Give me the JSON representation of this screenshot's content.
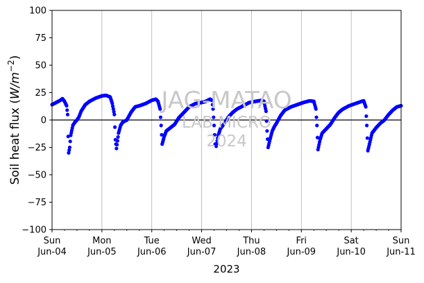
{
  "chart_data": {
    "type": "scatter",
    "title": "",
    "xlabel": "2023",
    "ylabel": "Soil heat flux (W/m⁻²)",
    "ylabel_parts": {
      "prefix": "Soil heat flux (",
      "unit": "W/m",
      "exp": "−2",
      "suffix": ")"
    },
    "xlim": [
      "2023-06-04",
      "2023-06-11"
    ],
    "ylim": [
      -100,
      100
    ],
    "yticks": [
      -100,
      -75,
      -50,
      -25,
      0,
      25,
      50,
      75,
      100
    ],
    "ytick_labels": [
      "−100",
      "−75",
      "−50",
      "−25",
      "0",
      "25",
      "50",
      "75",
      "100"
    ],
    "xticks": [
      {
        "date": "2023-06-04",
        "day": "Sun",
        "date_label": "Jun-04"
      },
      {
        "date": "2023-06-05",
        "day": "Mon",
        "date_label": "Jun-05"
      },
      {
        "date": "2023-06-06",
        "day": "Tue",
        "date_label": "Jun-06"
      },
      {
        "date": "2023-06-07",
        "day": "Wed",
        "date_label": "Jun-07"
      },
      {
        "date": "2023-06-08",
        "day": "Thu",
        "date_label": "Jun-08"
      },
      {
        "date": "2023-06-09",
        "day": "Fri",
        "date_label": "Jun-09"
      },
      {
        "date": "2023-06-10",
        "day": "Sat",
        "date_label": "Jun-10"
      },
      {
        "date": "2023-06-11",
        "day": "Sun",
        "date_label": "Jun-11"
      }
    ],
    "grid": "vertical",
    "zero_line": true,
    "marker_color": "#0000ff",
    "watermark": [
      "JAG-MATAO",
      "LAB MICRO",
      "2024"
    ],
    "series": [
      {
        "points": [
          [
            "2023-06-04 00:00",
            14
          ],
          [
            "2023-06-04 02:00",
            16
          ],
          [
            "2023-06-04 04:00",
            18
          ],
          [
            "2023-06-04 05:00",
            19.5
          ],
          [
            "2023-06-04 06:00",
            17
          ],
          [
            "2023-06-04 07:00",
            13
          ],
          [
            "2023-06-04 07:30",
            5
          ],
          [
            "2023-06-04 07:45",
            -15
          ],
          [
            "2023-06-04 08:00",
            -30
          ],
          [
            "2023-06-04 08:30",
            -25
          ],
          [
            "2023-06-04 09:00",
            -14
          ],
          [
            "2023-06-04 10:00",
            -5
          ],
          [
            "2023-06-04 11:00",
            -2
          ],
          [
            "2023-06-04 12:00",
            0
          ],
          [
            "2023-06-04 13:00",
            3
          ],
          [
            "2023-06-04 14:00",
            8
          ],
          [
            "2023-06-04 16:00",
            14
          ],
          [
            "2023-06-04 18:00",
            17
          ],
          [
            "2023-06-04 21:00",
            20
          ],
          [
            "2023-06-05 00:00",
            22
          ],
          [
            "2023-06-05 02:00",
            22.5
          ],
          [
            "2023-06-05 04:00",
            21
          ],
          [
            "2023-06-05 05:00",
            15
          ],
          [
            "2023-06-05 06:00",
            5
          ],
          [
            "2023-06-05 06:30",
            -18
          ],
          [
            "2023-06-05 07:00",
            -26
          ],
          [
            "2023-06-05 08:00",
            -12
          ],
          [
            "2023-06-05 09:00",
            -5
          ],
          [
            "2023-06-05 10:00",
            -2
          ],
          [
            "2023-06-05 12:00",
            0
          ],
          [
            "2023-06-05 14:00",
            7
          ],
          [
            "2023-06-05 16:00",
            12
          ],
          [
            "2023-06-05 18:00",
            13
          ],
          [
            "2023-06-05 21:00",
            15
          ],
          [
            "2023-06-06 00:00",
            18
          ],
          [
            "2023-06-06 02:00",
            19
          ],
          [
            "2023-06-06 03:00",
            17
          ],
          [
            "2023-06-06 04:00",
            10
          ],
          [
            "2023-06-06 04:30",
            -5
          ],
          [
            "2023-06-06 05:00",
            -22
          ],
          [
            "2023-06-06 06:00",
            -15
          ],
          [
            "2023-06-06 07:00",
            -10
          ],
          [
            "2023-06-06 09:00",
            -7
          ],
          [
            "2023-06-06 11:00",
            -4
          ],
          [
            "2023-06-06 13:00",
            2
          ],
          [
            "2023-06-06 15:00",
            6
          ],
          [
            "2023-06-06 18:00",
            12
          ],
          [
            "2023-06-06 21:00",
            15
          ],
          [
            "2023-06-07 00:00",
            16
          ],
          [
            "2023-06-07 02:00",
            17
          ],
          [
            "2023-06-07 04:00",
            19
          ],
          [
            "2023-06-07 05:00",
            18
          ],
          [
            "2023-06-07 05:30",
            10
          ],
          [
            "2023-06-07 06:00",
            -5
          ],
          [
            "2023-06-07 06:30",
            -22
          ],
          [
            "2023-06-07 07:00",
            -24
          ],
          [
            "2023-06-07 08:00",
            -14
          ],
          [
            "2023-06-07 09:00",
            -8
          ],
          [
            "2023-06-07 11:00",
            -3
          ],
          [
            "2023-06-07 13:00",
            3
          ],
          [
            "2023-06-07 15:00",
            7
          ],
          [
            "2023-06-07 17:00",
            10
          ],
          [
            "2023-06-07 20:00",
            13
          ],
          [
            "2023-06-07 23:00",
            16
          ],
          [
            "2023-06-08 02:00",
            17
          ],
          [
            "2023-06-08 05:00",
            18
          ],
          [
            "2023-06-08 06:00",
            17
          ],
          [
            "2023-06-08 07:00",
            8
          ],
          [
            "2023-06-08 07:30",
            -10
          ],
          [
            "2023-06-08 08:00",
            -25
          ],
          [
            "2023-06-08 09:00",
            -17
          ],
          [
            "2023-06-08 10:00",
            -10
          ],
          [
            "2023-06-08 11:00",
            -6
          ],
          [
            "2023-06-08 12:00",
            -3
          ],
          [
            "2023-06-08 14:00",
            4
          ],
          [
            "2023-06-08 16:00",
            9
          ],
          [
            "2023-06-08 19:00",
            12
          ],
          [
            "2023-06-08 22:00",
            14
          ],
          [
            "2023-06-09 01:00",
            16
          ],
          [
            "2023-06-09 04:00",
            17.5
          ],
          [
            "2023-06-09 06:00",
            17
          ],
          [
            "2023-06-09 07:00",
            10
          ],
          [
            "2023-06-09 07:30",
            -5
          ],
          [
            "2023-06-09 08:00",
            -27
          ],
          [
            "2023-06-09 09:00",
            -18
          ],
          [
            "2023-06-09 10:00",
            -12
          ],
          [
            "2023-06-09 12:00",
            -8
          ],
          [
            "2023-06-09 14:00",
            -4
          ],
          [
            "2023-06-09 16:00",
            2
          ],
          [
            "2023-06-09 18:00",
            7
          ],
          [
            "2023-06-09 20:00",
            10
          ],
          [
            "2023-06-09 23:00",
            13
          ],
          [
            "2023-06-10 02:00",
            15
          ],
          [
            "2023-06-10 05:00",
            17
          ],
          [
            "2023-06-10 06:00",
            17.5
          ],
          [
            "2023-06-10 07:00",
            12
          ],
          [
            "2023-06-10 07:30",
            -5
          ],
          [
            "2023-06-10 08:00",
            -28
          ],
          [
            "2023-06-10 09:00",
            -20
          ],
          [
            "2023-06-10 10:00",
            -12
          ],
          [
            "2023-06-10 12:00",
            -7
          ],
          [
            "2023-06-10 14:00",
            -3
          ],
          [
            "2023-06-10 16:00",
            0
          ],
          [
            "2023-06-10 18:00",
            5
          ],
          [
            "2023-06-10 20:00",
            9
          ],
          [
            "2023-06-10 22:00",
            12
          ],
          [
            "2023-06-11 00:00",
            13
          ]
        ]
      }
    ]
  }
}
